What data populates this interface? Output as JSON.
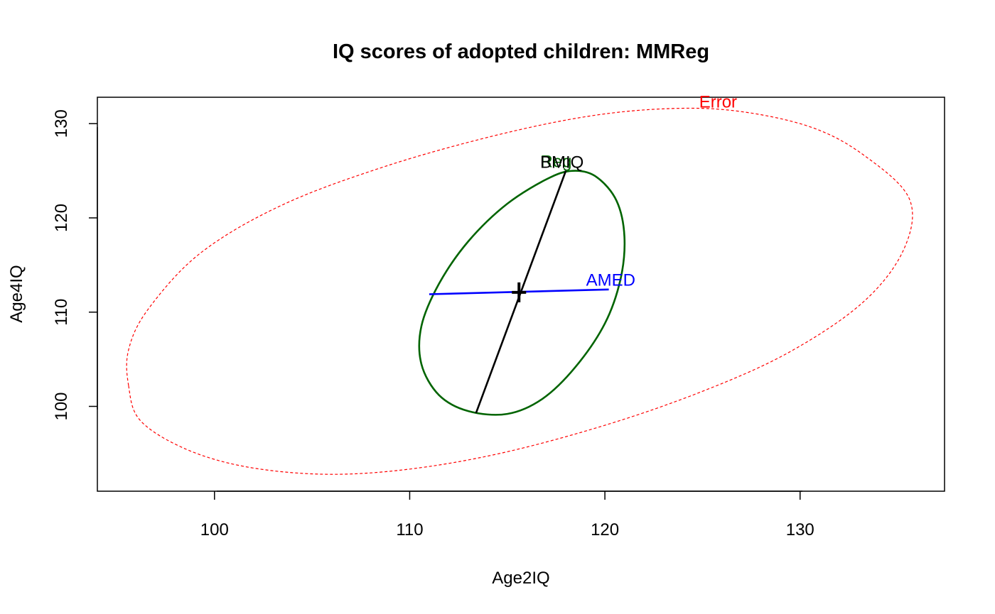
{
  "chart_data": {
    "type": "scatter",
    "title": "IQ scores of adopted children: MMReg",
    "xlabel": "Age2IQ",
    "ylabel": "Age4IQ",
    "xlim": [
      94,
      137.4
    ],
    "ylim": [
      91,
      132.8
    ],
    "x_ticks": [
      100,
      110,
      120,
      130
    ],
    "y_ticks": [
      100,
      110,
      120,
      130
    ],
    "grid": false,
    "center": {
      "x": 115.6,
      "y": 112.1
    },
    "ellipses": [
      {
        "name": "Error",
        "color": "#ff0000",
        "style": "dashed",
        "points": [
          [
            95.6,
            102.2
          ],
          [
            96.2,
            98.5
          ],
          [
            98.5,
            95.5
          ],
          [
            101.6,
            93.6
          ],
          [
            105.6,
            92.8
          ],
          [
            109.8,
            93.3
          ],
          [
            114.6,
            95.0
          ],
          [
            120.0,
            98.0
          ],
          [
            125.0,
            101.6
          ],
          [
            129.4,
            105.7
          ],
          [
            133.2,
            111.0
          ],
          [
            135.3,
            116.6
          ],
          [
            135.6,
            122.0
          ],
          [
            133.3,
            126.6
          ],
          [
            130.6,
            129.6
          ],
          [
            126.9,
            131.3
          ],
          [
            123.4,
            131.6
          ],
          [
            119.2,
            130.8
          ],
          [
            114.3,
            128.7
          ],
          [
            108.8,
            125.5
          ],
          [
            103.5,
            121.4
          ],
          [
            99.3,
            116.3
          ],
          [
            96.6,
            110.3
          ],
          [
            95.6,
            106.0
          ],
          [
            95.6,
            102.2
          ]
        ],
        "label": {
          "text": "Error",
          "x": 125.8,
          "y": 132.3
        }
      },
      {
        "name": "Reg",
        "color": "#006400",
        "style": "solid",
        "points": [
          [
            115.0,
            99.2
          ],
          [
            113.0,
            99.5
          ],
          [
            111.5,
            101.2
          ],
          [
            110.6,
            104.5
          ],
          [
            110.6,
            108.5
          ],
          [
            111.5,
            113.0
          ],
          [
            113.0,
            117.5
          ],
          [
            115.0,
            121.5
          ],
          [
            117.2,
            124.3
          ],
          [
            118.5,
            125.0
          ],
          [
            119.6,
            124.3
          ],
          [
            120.6,
            121.8
          ],
          [
            121.0,
            118.0
          ],
          [
            120.8,
            113.5
          ],
          [
            120.0,
            108.8
          ],
          [
            118.5,
            104.2
          ],
          [
            116.8,
            100.8
          ],
          [
            115.0,
            99.2
          ]
        ],
        "label": {
          "text": "Reg",
          "x": 117.5,
          "y": 126.0
        }
      }
    ],
    "axes_lines": [
      {
        "name": "BMIQ",
        "color": "#000000",
        "from": [
          113.4,
          99.3
        ],
        "to": [
          118.0,
          125.0
        ],
        "label": {
          "text": "BMIQ",
          "x": 117.8,
          "y": 125.9
        }
      },
      {
        "name": "AMED",
        "color": "#0000ff",
        "from": [
          111.0,
          111.9
        ],
        "to": [
          120.2,
          112.4
        ],
        "label": {
          "text": "AMED",
          "x": 120.3,
          "y": 113.4
        }
      }
    ]
  }
}
